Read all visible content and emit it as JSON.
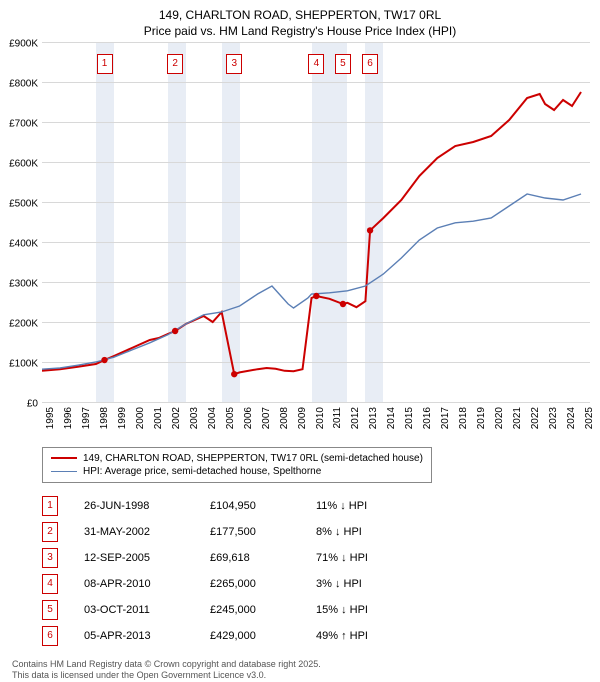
{
  "title_line1": "149, CHARLTON ROAD, SHEPPERTON, TW17 0RL",
  "title_line2": "Price paid vs. HM Land Registry's House Price Index (HPI)",
  "chart": {
    "type": "line",
    "x_domain": [
      1995,
      2025.5
    ],
    "y_domain": [
      0,
      900000
    ],
    "y_ticks": [
      0,
      100000,
      200000,
      300000,
      400000,
      500000,
      600000,
      700000,
      800000,
      900000
    ],
    "y_tick_labels": [
      "£0",
      "£100K",
      "£200K",
      "£300K",
      "£400K",
      "£500K",
      "£600K",
      "£700K",
      "£800K",
      "£900K"
    ],
    "x_ticks": [
      1995,
      1996,
      1997,
      1998,
      1999,
      2000,
      2001,
      2002,
      2003,
      2004,
      2005,
      2006,
      2007,
      2008,
      2009,
      2010,
      2011,
      2012,
      2013,
      2014,
      2015,
      2016,
      2017,
      2018,
      2019,
      2020,
      2021,
      2022,
      2023,
      2024,
      2025
    ],
    "shaded_years": [
      1998,
      2002,
      2005,
      2010,
      2011,
      2013
    ],
    "grid_color": "#d8d8d8",
    "background_color": "#ffffff",
    "shade_color": "#e8edf5",
    "series": [
      {
        "name": "property",
        "label": "149, CHARLTON ROAD, SHEPPERTON, TW17 0RL (semi-detached house)",
        "color": "#cc0000",
        "width": 2,
        "points": [
          [
            1995,
            78000
          ],
          [
            1996,
            82000
          ],
          [
            1997,
            88000
          ],
          [
            1998,
            95000
          ],
          [
            1998.48,
            104950
          ],
          [
            1999,
            115000
          ],
          [
            2000,
            135000
          ],
          [
            2001,
            155000
          ],
          [
            2001.5,
            160000
          ],
          [
            2002,
            170000
          ],
          [
            2002.41,
            177500
          ],
          [
            2003,
            195000
          ],
          [
            2004,
            215000
          ],
          [
            2004.5,
            200000
          ],
          [
            2005,
            225000
          ],
          [
            2005.7,
            69618
          ],
          [
            2006,
            74000
          ],
          [
            2007,
            82000
          ],
          [
            2007.5,
            85000
          ],
          [
            2008,
            83000
          ],
          [
            2008.5,
            78000
          ],
          [
            2009,
            77000
          ],
          [
            2009.5,
            82000
          ],
          [
            2010,
            260000
          ],
          [
            2010.27,
            265000
          ],
          [
            2011,
            258000
          ],
          [
            2011.75,
            245000
          ],
          [
            2012,
            248000
          ],
          [
            2012.5,
            237000
          ],
          [
            2013,
            252000
          ],
          [
            2013.26,
            429000
          ],
          [
            2014,
            460000
          ],
          [
            2015,
            505000
          ],
          [
            2016,
            565000
          ],
          [
            2017,
            610000
          ],
          [
            2018,
            640000
          ],
          [
            2019,
            650000
          ],
          [
            2020,
            665000
          ],
          [
            2021,
            705000
          ],
          [
            2022,
            760000
          ],
          [
            2022.7,
            770000
          ],
          [
            2023,
            745000
          ],
          [
            2023.5,
            730000
          ],
          [
            2024,
            755000
          ],
          [
            2024.5,
            740000
          ],
          [
            2025,
            775000
          ]
        ]
      },
      {
        "name": "hpi",
        "label": "HPI: Average price, semi-detached house, Spelthorne",
        "color": "#5b7fb5",
        "width": 1.4,
        "points": [
          [
            1995,
            82000
          ],
          [
            1996,
            85000
          ],
          [
            1997,
            92000
          ],
          [
            1998,
            100000
          ],
          [
            1999,
            112000
          ],
          [
            2000,
            130000
          ],
          [
            2001,
            148000
          ],
          [
            2002,
            168000
          ],
          [
            2003,
            195000
          ],
          [
            2004,
            218000
          ],
          [
            2005,
            225000
          ],
          [
            2006,
            240000
          ],
          [
            2007,
            270000
          ],
          [
            2007.8,
            290000
          ],
          [
            2008,
            280000
          ],
          [
            2008.7,
            245000
          ],
          [
            2009,
            235000
          ],
          [
            2009.8,
            260000
          ],
          [
            2010,
            270000
          ],
          [
            2011,
            273000
          ],
          [
            2012,
            278000
          ],
          [
            2013,
            290000
          ],
          [
            2014,
            320000
          ],
          [
            2015,
            360000
          ],
          [
            2016,
            405000
          ],
          [
            2017,
            435000
          ],
          [
            2018,
            448000
          ],
          [
            2019,
            452000
          ],
          [
            2020,
            460000
          ],
          [
            2021,
            490000
          ],
          [
            2022,
            520000
          ],
          [
            2023,
            510000
          ],
          [
            2024,
            505000
          ],
          [
            2025,
            520000
          ]
        ]
      }
    ],
    "point_markers": [
      {
        "x": 1998.48,
        "y": 104950
      },
      {
        "x": 2002.41,
        "y": 177500
      },
      {
        "x": 2005.7,
        "y": 69618
      },
      {
        "x": 2010.27,
        "y": 265000
      },
      {
        "x": 2011.75,
        "y": 245000
      },
      {
        "x": 2013.26,
        "y": 429000
      }
    ],
    "marker_color": "#cc0000"
  },
  "legend": {
    "items": [
      {
        "color": "#cc0000",
        "width": 2.5,
        "label": "149, CHARLTON ROAD, SHEPPERTON, TW17 0RL (semi-detached house)"
      },
      {
        "color": "#5b7fb5",
        "width": 1.5,
        "label": "HPI: Average price, semi-detached house, Spelthorne"
      }
    ]
  },
  "sales": [
    {
      "n": "1",
      "date": "26-JUN-1998",
      "price": "£104,950",
      "diff": "11% ↓ HPI"
    },
    {
      "n": "2",
      "date": "31-MAY-2002",
      "price": "£177,500",
      "diff": "8% ↓ HPI"
    },
    {
      "n": "3",
      "date": "12-SEP-2005",
      "price": "£69,618",
      "diff": "71% ↓ HPI"
    },
    {
      "n": "4",
      "date": "08-APR-2010",
      "price": "£265,000",
      "diff": "3% ↓ HPI"
    },
    {
      "n": "5",
      "date": "03-OCT-2011",
      "price": "£245,000",
      "diff": "15% ↓ HPI"
    },
    {
      "n": "6",
      "date": "05-APR-2013",
      "price": "£429,000",
      "diff": "49% ↑ HPI"
    }
  ],
  "footer_line1": "Contains HM Land Registry data © Crown copyright and database right 2025.",
  "footer_line2": "This data is licensed under the Open Government Licence v3.0."
}
